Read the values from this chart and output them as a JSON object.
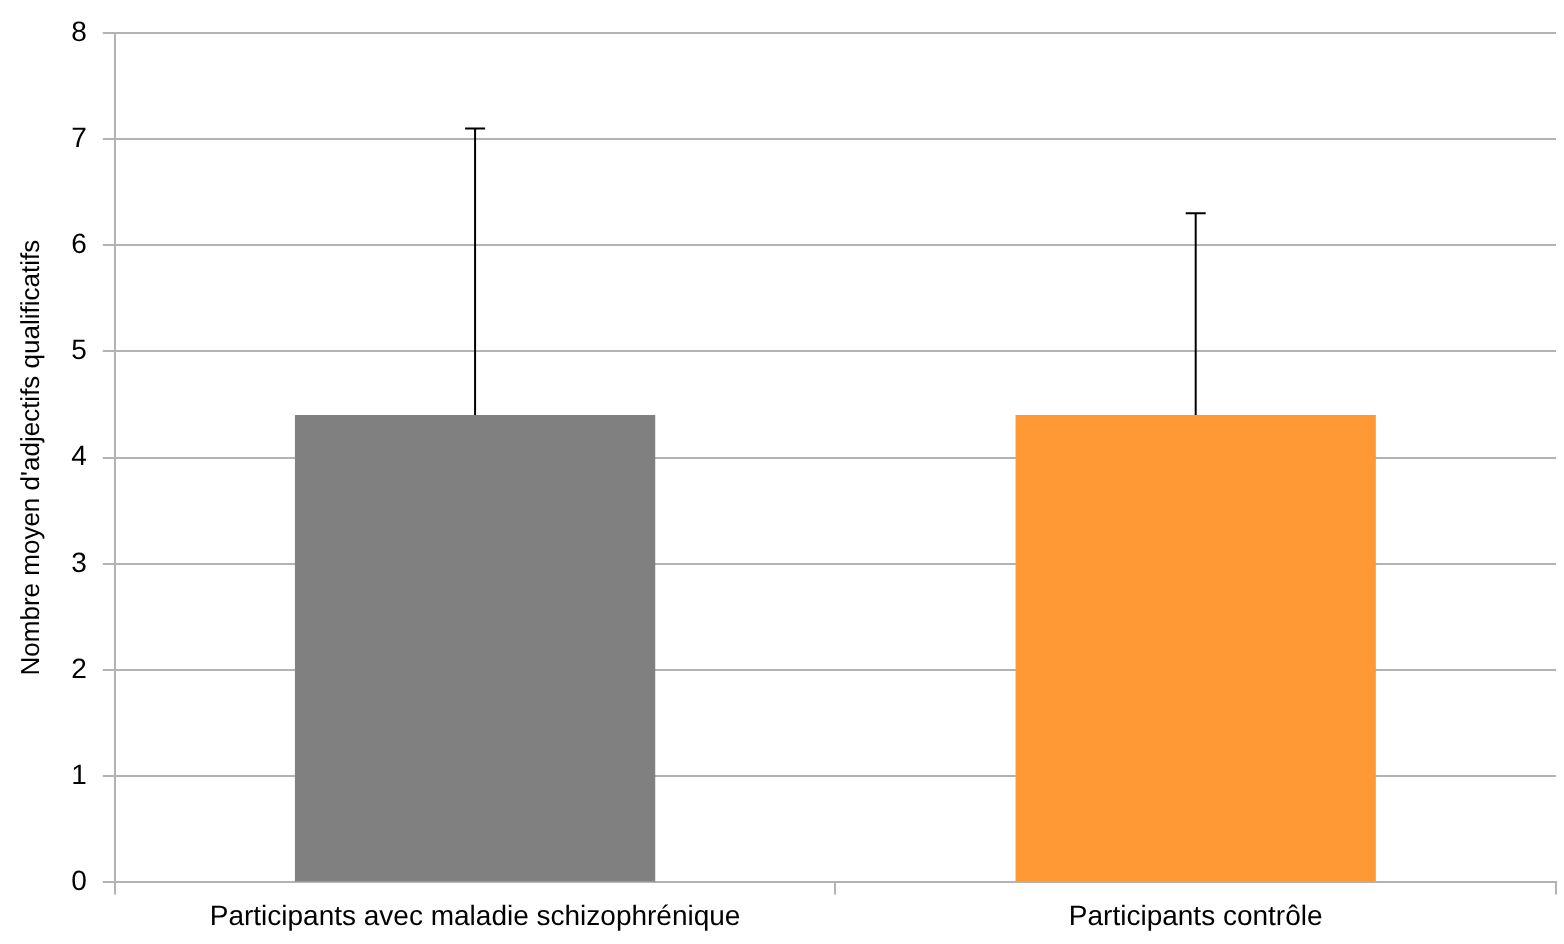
{
  "chart_data": {
    "type": "bar",
    "ylabel": "Nombre moyen d'adjectifs qualificatifs",
    "categories": [
      "Participants avec maladie schizophrénique",
      "Participants contrôle"
    ],
    "values": [
      4.4,
      4.4
    ],
    "colors": [
      "#808080",
      "#ff9933"
    ],
    "errors": [
      [
        4.4,
        7.1
      ],
      [
        4.4,
        6.3
      ]
    ],
    "ylim": [
      0,
      8
    ],
    "yticks": [
      0,
      1,
      2,
      3,
      4,
      5,
      6,
      7,
      8
    ],
    "grid": "y",
    "legend": false
  }
}
